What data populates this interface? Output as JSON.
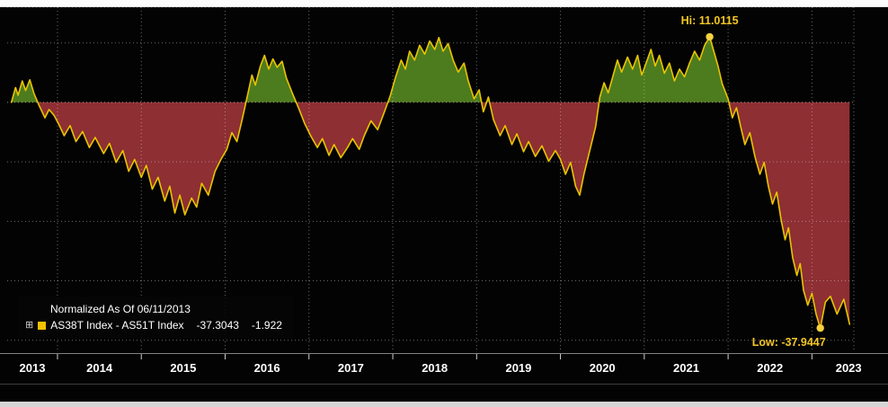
{
  "legend": {
    "normalized_label": "Normalized As Of 06/11/2013",
    "expand_icon": "⊞",
    "series_label": "AS38T Index - AS51T Index",
    "last_value": "-37.3043",
    "change_value": "-1.922"
  },
  "axis": {
    "years": [
      "2013",
      "2014",
      "2015",
      "2016",
      "2017",
      "2018",
      "2019",
      "2020",
      "2021",
      "2022",
      "2023"
    ]
  },
  "annotations": {
    "hi_label": "Hi: 11.0115",
    "low_label": "Low: -37.9447"
  },
  "chart_data": {
    "type": "area",
    "title": "",
    "xlabel": "",
    "ylabel": "",
    "x_range": [
      2013.4,
      2023.5
    ],
    "y_range": [
      -42,
      16
    ],
    "x_ticks": [
      2014,
      2015,
      2016,
      2017,
      2018,
      2019,
      2020,
      2021,
      2022,
      2023
    ],
    "x_axis_labels": [
      "2013",
      "2014",
      "2015",
      "2016",
      "2017",
      "2018",
      "2019",
      "2020",
      "2021",
      "2022",
      "2023"
    ],
    "y_gridlines": [
      16,
      10,
      0,
      -10,
      -20,
      -30,
      -40
    ],
    "grid": "dotted",
    "legend_position": "bottom-left",
    "hi": {
      "x": 2021.78,
      "value": 11.0115,
      "label": "Hi: 11.0115"
    },
    "low": {
      "x": 2023.1,
      "value": -37.9447,
      "label": "Low: -37.9447"
    },
    "colors": {
      "line": "#e9c400",
      "point": "#f5d040",
      "positive_fill": "#4d7c1e",
      "negative_fill": "#8e2f33",
      "grid": "#e8e8e8",
      "axis_text": "#ffffff",
      "annotation": "#f3c624",
      "background": "#030303"
    },
    "series": [
      {
        "name": "AS38T Index - AS51T Index",
        "normalized_as_of": "06/11/2013",
        "last": -37.3043,
        "change": -1.922,
        "points": [
          [
            2013.45,
            0
          ],
          [
            2013.5,
            2.5
          ],
          [
            2013.53,
            1.2
          ],
          [
            2013.58,
            3.6
          ],
          [
            2013.62,
            2.0
          ],
          [
            2013.67,
            3.8
          ],
          [
            2013.72,
            1.5
          ],
          [
            2013.78,
            -0.5
          ],
          [
            2013.85,
            -2.6
          ],
          [
            2013.9,
            -1.2
          ],
          [
            2013.96,
            -2.2
          ],
          [
            2014.02,
            -3.8
          ],
          [
            2014.08,
            -5.6
          ],
          [
            2014.15,
            -3.9
          ],
          [
            2014.22,
            -6.6
          ],
          [
            2014.3,
            -4.9
          ],
          [
            2014.38,
            -7.6
          ],
          [
            2014.45,
            -5.9
          ],
          [
            2014.55,
            -8.6
          ],
          [
            2014.62,
            -6.9
          ],
          [
            2014.7,
            -10.1
          ],
          [
            2014.78,
            -8.1
          ],
          [
            2014.85,
            -11.6
          ],
          [
            2014.92,
            -9.6
          ],
          [
            2015.0,
            -12.6
          ],
          [
            2015.06,
            -10.6
          ],
          [
            2015.13,
            -14.6
          ],
          [
            2015.2,
            -12.6
          ],
          [
            2015.28,
            -16.6
          ],
          [
            2015.34,
            -14.1
          ],
          [
            2015.4,
            -18.6
          ],
          [
            2015.46,
            -15.6
          ],
          [
            2015.52,
            -18.9
          ],
          [
            2015.6,
            -16.1
          ],
          [
            2015.66,
            -17.6
          ],
          [
            2015.72,
            -13.6
          ],
          [
            2015.8,
            -15.6
          ],
          [
            2015.88,
            -11.6
          ],
          [
            2015.95,
            -9.6
          ],
          [
            2016.02,
            -7.9
          ],
          [
            2016.08,
            -5.1
          ],
          [
            2016.14,
            -6.6
          ],
          [
            2016.2,
            -3.1
          ],
          [
            2016.27,
            1.4
          ],
          [
            2016.32,
            4.6
          ],
          [
            2016.36,
            2.9
          ],
          [
            2016.42,
            6.1
          ],
          [
            2016.47,
            7.9
          ],
          [
            2016.52,
            5.6
          ],
          [
            2016.57,
            7.3
          ],
          [
            2016.62,
            5.9
          ],
          [
            2016.68,
            6.9
          ],
          [
            2016.73,
            4.1
          ],
          [
            2016.8,
            1.6
          ],
          [
            2016.88,
            -1.1
          ],
          [
            2016.95,
            -3.6
          ],
          [
            2017.02,
            -5.6
          ],
          [
            2017.1,
            -7.6
          ],
          [
            2017.16,
            -6.1
          ],
          [
            2017.24,
            -8.9
          ],
          [
            2017.3,
            -7.1
          ],
          [
            2017.38,
            -9.3
          ],
          [
            2017.46,
            -7.6
          ],
          [
            2017.52,
            -6.1
          ],
          [
            2017.6,
            -7.9
          ],
          [
            2017.66,
            -5.6
          ],
          [
            2017.74,
            -3.1
          ],
          [
            2017.82,
            -4.6
          ],
          [
            2017.9,
            -1.6
          ],
          [
            2017.97,
            1.1
          ],
          [
            2018.03,
            4.1
          ],
          [
            2018.1,
            7.1
          ],
          [
            2018.15,
            5.6
          ],
          [
            2018.2,
            8.6
          ],
          [
            2018.26,
            7.1
          ],
          [
            2018.32,
            9.6
          ],
          [
            2018.38,
            8.1
          ],
          [
            2018.44,
            10.3
          ],
          [
            2018.5,
            8.9
          ],
          [
            2018.55,
            10.9
          ],
          [
            2018.6,
            8.6
          ],
          [
            2018.66,
            9.9
          ],
          [
            2018.72,
            7.1
          ],
          [
            2018.78,
            5.1
          ],
          [
            2018.85,
            6.6
          ],
          [
            2018.9,
            3.6
          ],
          [
            2018.97,
            0.6
          ],
          [
            2019.03,
            2.1
          ],
          [
            2019.08,
            -1.6
          ],
          [
            2019.14,
            0.9
          ],
          [
            2019.2,
            -2.9
          ],
          [
            2019.28,
            -5.6
          ],
          [
            2019.34,
            -3.9
          ],
          [
            2019.42,
            -7.1
          ],
          [
            2019.48,
            -5.3
          ],
          [
            2019.56,
            -8.3
          ],
          [
            2019.62,
            -6.6
          ],
          [
            2019.7,
            -9.1
          ],
          [
            2019.78,
            -7.3
          ],
          [
            2019.86,
            -9.9
          ],
          [
            2019.94,
            -8.1
          ],
          [
            2020.0,
            -9.6
          ],
          [
            2020.06,
            -12.1
          ],
          [
            2020.12,
            -10.1
          ],
          [
            2020.18,
            -14.1
          ],
          [
            2020.23,
            -15.6
          ],
          [
            2020.28,
            -12.1
          ],
          [
            2020.35,
            -8.1
          ],
          [
            2020.42,
            -4.1
          ],
          [
            2020.47,
            0.9
          ],
          [
            2020.52,
            3.3
          ],
          [
            2020.57,
            1.6
          ],
          [
            2020.63,
            4.6
          ],
          [
            2020.68,
            7.1
          ],
          [
            2020.73,
            5.1
          ],
          [
            2020.8,
            7.6
          ],
          [
            2020.86,
            5.6
          ],
          [
            2020.92,
            7.9
          ],
          [
            2020.97,
            4.6
          ],
          [
            2021.03,
            6.9
          ],
          [
            2021.08,
            8.9
          ],
          [
            2021.13,
            6.1
          ],
          [
            2021.18,
            7.9
          ],
          [
            2021.24,
            4.9
          ],
          [
            2021.3,
            6.6
          ],
          [
            2021.36,
            3.6
          ],
          [
            2021.42,
            5.6
          ],
          [
            2021.48,
            4.3
          ],
          [
            2021.54,
            6.6
          ],
          [
            2021.6,
            8.6
          ],
          [
            2021.66,
            7.1
          ],
          [
            2021.72,
            9.6
          ],
          [
            2021.78,
            11.0115
          ],
          [
            2021.83,
            8.6
          ],
          [
            2021.88,
            6.1
          ],
          [
            2021.93,
            3.1
          ],
          [
            2022.0,
            0.6
          ],
          [
            2022.05,
            -2.6
          ],
          [
            2022.1,
            -0.9
          ],
          [
            2022.15,
            -4.1
          ],
          [
            2022.2,
            -7.1
          ],
          [
            2022.26,
            -5.1
          ],
          [
            2022.32,
            -9.1
          ],
          [
            2022.38,
            -12.1
          ],
          [
            2022.43,
            -10.1
          ],
          [
            2022.48,
            -14.1
          ],
          [
            2022.53,
            -17.1
          ],
          [
            2022.58,
            -15.1
          ],
          [
            2022.63,
            -19.6
          ],
          [
            2022.68,
            -23.1
          ],
          [
            2022.72,
            -21.1
          ],
          [
            2022.77,
            -26.1
          ],
          [
            2022.82,
            -29.1
          ],
          [
            2022.86,
            -27.1
          ],
          [
            2022.9,
            -31.6
          ],
          [
            2022.95,
            -34.1
          ],
          [
            2023.0,
            -32.1
          ],
          [
            2023.05,
            -35.6
          ],
          [
            2023.1,
            -37.9447
          ],
          [
            2023.16,
            -33.6
          ],
          [
            2023.22,
            -32.6
          ],
          [
            2023.3,
            -35.6
          ],
          [
            2023.38,
            -33.1
          ],
          [
            2023.45,
            -37.3043
          ]
        ]
      }
    ]
  }
}
